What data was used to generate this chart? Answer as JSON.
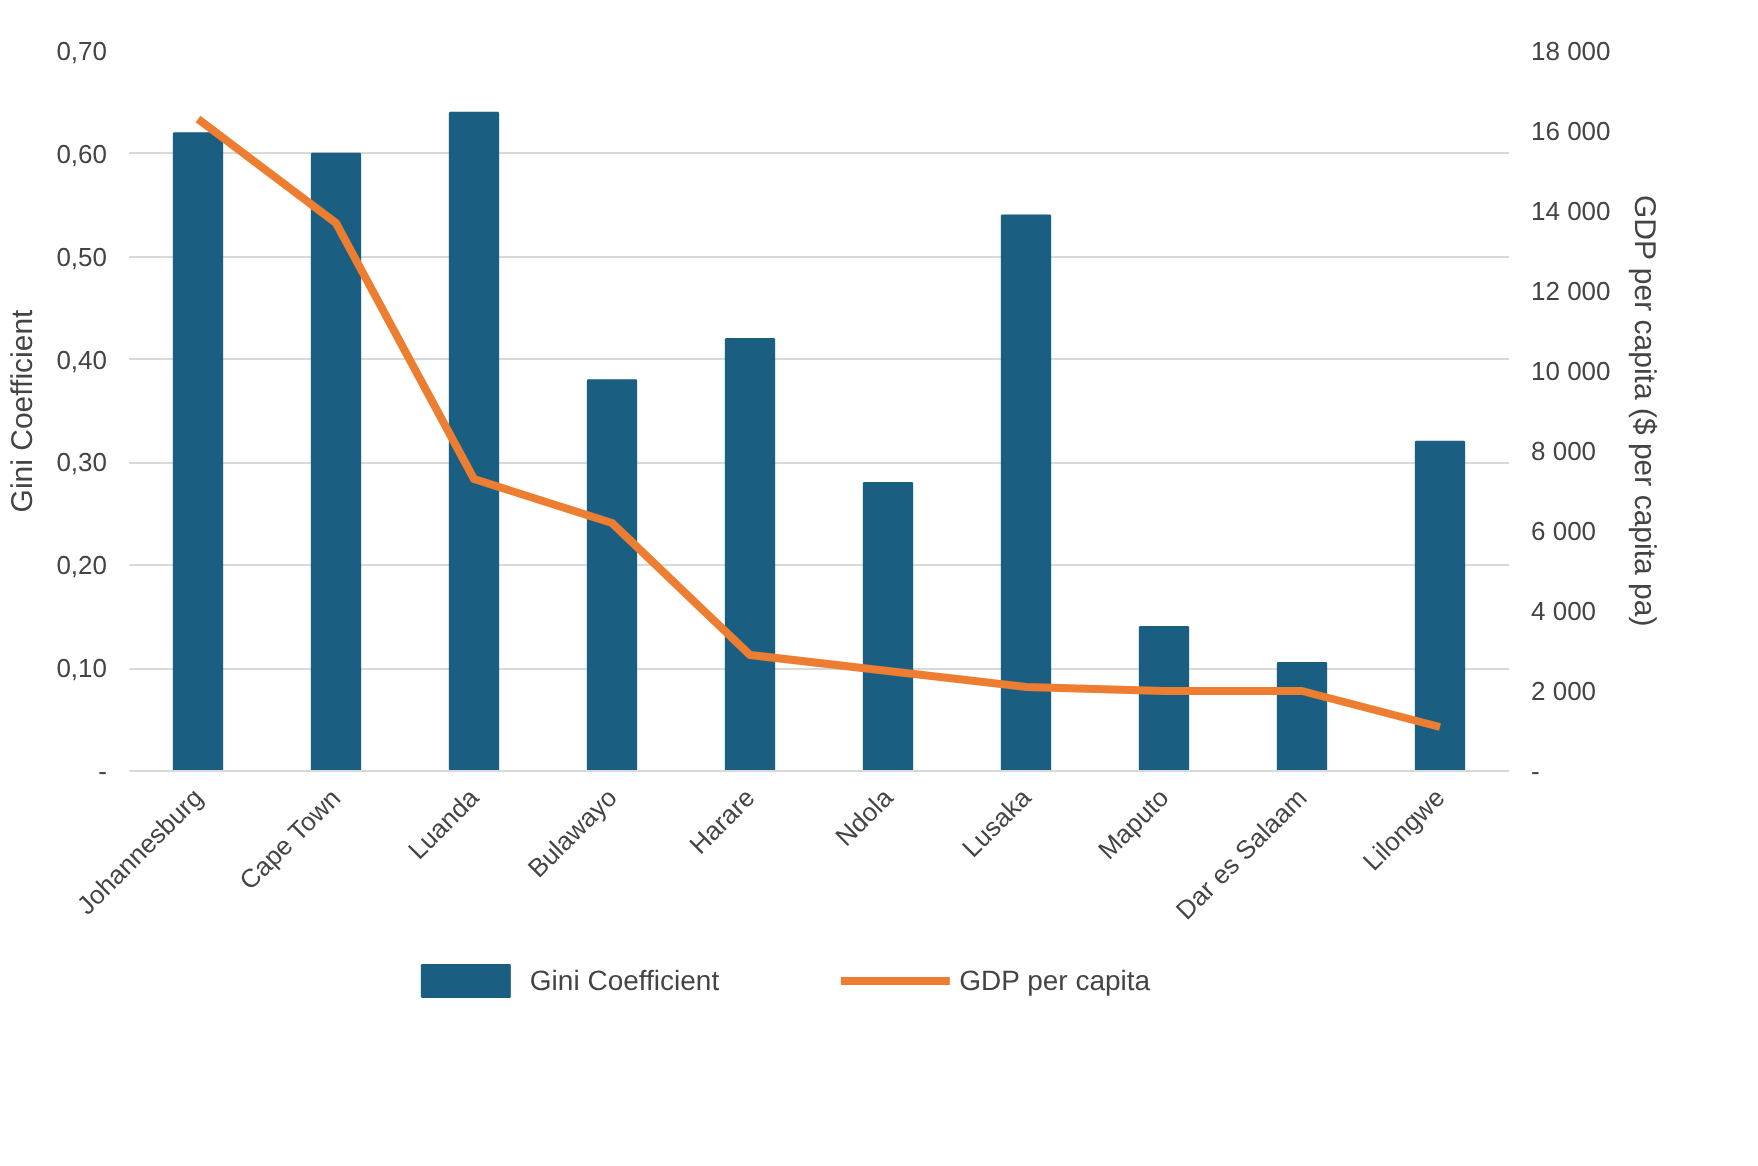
{
  "chart_data": {
    "type": "bar",
    "ylabel": "Gini Coefficient",
    "y2label": "GDP per capita ($ per capita pa)",
    "categories": [
      "Johannesburg",
      "Cape Town",
      "Luanda",
      "Bulawayo",
      "Harare",
      "Ndola",
      "Lusaka",
      "Maputo",
      "Dar es Salaam",
      "Lilongwe"
    ],
    "series": [
      {
        "name": "Gini Coefficient",
        "color": "#1a5f82",
        "values": [
          0.62,
          0.6,
          0.64,
          0.38,
          0.42,
          0.28,
          0.54,
          0.14,
          0.105,
          0.32
        ]
      },
      {
        "name": "GDP per capita",
        "type": "line",
        "axis": "y2",
        "color": "#ed7d31",
        "values": [
          16300,
          13700,
          7300,
          6200,
          2900,
          2500,
          2100,
          2000,
          2000,
          1100
        ]
      }
    ],
    "ylim": [
      0,
      0.7
    ],
    "yticks": [
      {
        "value": 0,
        "label": "-"
      },
      {
        "value": 0.1,
        "label": "0,10"
      },
      {
        "value": 0.2,
        "label": "0,20"
      },
      {
        "value": 0.3,
        "label": "0,30"
      },
      {
        "value": 0.4,
        "label": "0,40"
      },
      {
        "value": 0.5,
        "label": "0,50"
      },
      {
        "value": 0.6,
        "label": "0,60"
      },
      {
        "value": 0.7,
        "label": "0,70"
      }
    ],
    "y2lim": [
      0,
      18000
    ],
    "y2ticks": [
      {
        "value": 0,
        "label": "-"
      },
      {
        "value": 2000,
        "label": "2 000"
      },
      {
        "value": 4000,
        "label": "4 000"
      },
      {
        "value": 6000,
        "label": "6 000"
      },
      {
        "value": 8000,
        "label": "8 000"
      },
      {
        "value": 10000,
        "label": "10 000"
      },
      {
        "value": 12000,
        "label": "12 000"
      },
      {
        "value": 14000,
        "label": "14 000"
      },
      {
        "value": 16000,
        "label": "16 000"
      },
      {
        "value": 18000,
        "label": "18 000"
      }
    ],
    "grid": "y",
    "legend": "bottom",
    "line_style": "solid"
  }
}
